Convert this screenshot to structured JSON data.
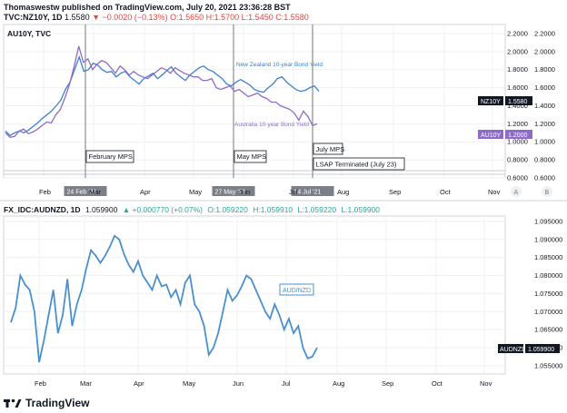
{
  "header": {
    "line1": "Thomaswestw published on TradingView.com, July 20, 2021 23:36:28 BST",
    "symbol": "TVC:NZ10Y, 1D",
    "price": "1.5580",
    "change": "▼ −0.0020 (−0.13%)",
    "o": "O:1.5650",
    "h": "H:1.5700",
    "l": "L:1.5450",
    "c": "C:1.5580"
  },
  "pane1_label": "AU10Y, TVC",
  "pane2_header": {
    "symbol": "FX_IDC:AUDNZD, 1D",
    "price": "1.059900",
    "change": "▲ +0.000770 (+0.07%)",
    "o": "O:1.059220",
    "h": "H:1.059910",
    "l": "L:1.059220",
    "c": "L:1.059900"
  },
  "footer": {
    "brand": "TradingView"
  },
  "colors": {
    "nz": "#3f7fcf",
    "au": "#8e6bc9",
    "audnzd": "#4a90d0",
    "event": "#888888"
  },
  "chart_data": [
    {
      "type": "line",
      "months": [
        "Feb",
        "Mar",
        "Apr",
        "May",
        "Jun",
        "Jul",
        "Aug",
        "Sep",
        "Oct",
        "Nov"
      ],
      "y_ticks": [
        "2.2000",
        "2.0000",
        "1.8000",
        "1.6000",
        "1.4000",
        "1.2000",
        "1.0000",
        "0.8000",
        "0.6000"
      ],
      "ylim": [
        0.6,
        2.3
      ],
      "grid": true,
      "series": [
        {
          "name": "New Zealand 10-year Bond Yield",
          "last_label": "NZ10Y",
          "last_value": "1.5580",
          "values": [
            1.12,
            1.07,
            1.1,
            1.12,
            1.1,
            1.13,
            1.17,
            1.21,
            1.26,
            1.3,
            1.34,
            1.4,
            1.46,
            1.58,
            1.66,
            1.8,
            1.94,
            1.78,
            1.8,
            1.87,
            1.85,
            1.8,
            1.77,
            1.78,
            1.72,
            1.76,
            1.78,
            1.72,
            1.68,
            1.64,
            1.7,
            1.73,
            1.76,
            1.7,
            1.74,
            1.79,
            1.83,
            1.76,
            1.72,
            1.68,
            1.74,
            1.78,
            1.82,
            1.84,
            1.8,
            1.78,
            1.74,
            1.7,
            1.64,
            1.62,
            1.66,
            1.69,
            1.66,
            1.63,
            1.58,
            1.56,
            1.55,
            1.6,
            1.64,
            1.7,
            1.72,
            1.66,
            1.62,
            1.58,
            1.56,
            1.57,
            1.6,
            1.62,
            1.56
          ]
        },
        {
          "name": "Australia 10-year Bond Yield",
          "last_label": "AU10Y",
          "last_value": "1.2000",
          "values": [
            1.1,
            1.05,
            1.06,
            1.12,
            1.14,
            1.09,
            1.11,
            1.14,
            1.18,
            1.22,
            1.21,
            1.3,
            1.36,
            1.49,
            1.64,
            1.84,
            2.06,
            1.88,
            1.92,
            1.8,
            1.86,
            1.9,
            1.88,
            1.82,
            1.76,
            1.84,
            1.8,
            1.74,
            1.78,
            1.74,
            1.72,
            1.7,
            1.74,
            1.78,
            1.82,
            1.8,
            1.76,
            1.82,
            1.79,
            1.76,
            1.74,
            1.72,
            1.72,
            1.68,
            1.68,
            1.7,
            1.6,
            1.58,
            1.6,
            1.62,
            1.56,
            1.58,
            1.54,
            1.5,
            1.52,
            1.54,
            1.5,
            1.48,
            1.44,
            1.44,
            1.4,
            1.38,
            1.36,
            1.32,
            1.24,
            1.34,
            1.28,
            1.18,
            1.2
          ]
        }
      ],
      "events": [
        {
          "date": "24 Feb '21",
          "label": "February MPS"
        },
        {
          "date": "27 May '21",
          "label": "May MPS"
        },
        {
          "date": "14 Jul '21",
          "label": "July MPS",
          "label2": "LSAP Terminated (July 23)"
        }
      ],
      "scale_buttons": [
        "A",
        "B"
      ]
    },
    {
      "type": "line",
      "months": [
        "Feb",
        "Mar",
        "Apr",
        "May",
        "Jun",
        "Jul",
        "Aug",
        "Sep",
        "Oct",
        "Nov"
      ],
      "y_ticks": [
        "1.095000",
        "1.090000",
        "1.085000",
        "1.080000",
        "1.075000",
        "1.070000",
        "1.065000",
        "1.060000",
        "1.055000"
      ],
      "ylim": [
        1.0527,
        1.0965
      ],
      "grid": true,
      "series": [
        {
          "name": "AUD/NZD",
          "last_label": "AUDNZD",
          "last_value": "1.059900",
          "values": [
            1.067,
            1.071,
            1.08,
            1.0775,
            1.076,
            1.07,
            1.056,
            1.062,
            1.069,
            1.076,
            1.064,
            1.069,
            1.079,
            1.066,
            1.072,
            1.076,
            1.082,
            1.087,
            1.0855,
            1.0835,
            1.0855,
            1.088,
            1.091,
            1.09,
            1.086,
            1.083,
            1.081,
            1.084,
            1.08,
            1.078,
            1.076,
            1.08,
            1.077,
            1.0775,
            1.074,
            1.076,
            1.072,
            1.078,
            1.08,
            1.072,
            1.07,
            1.066,
            1.058,
            1.06,
            1.064,
            1.07,
            1.076,
            1.073,
            1.0745,
            1.077,
            1.08,
            1.079,
            1.076,
            1.073,
            1.07,
            1.068,
            1.072,
            1.069,
            1.065,
            1.068,
            1.064,
            1.066,
            1.06,
            1.057,
            1.0575,
            1.06
          ]
        }
      ]
    }
  ]
}
